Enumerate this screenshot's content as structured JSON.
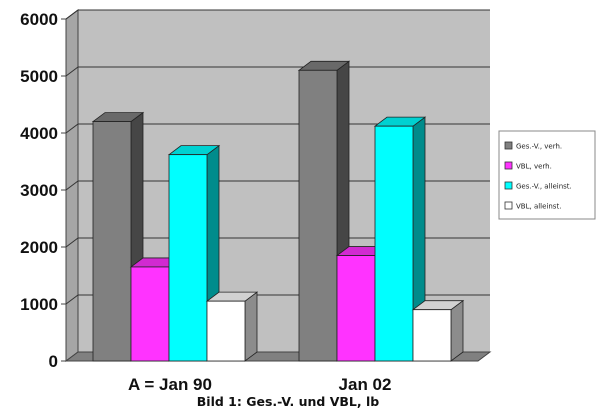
{
  "chart_data": {
    "type": "bar",
    "categories": [
      "A = Jan 90",
      "Jan 02"
    ],
    "series": [
      {
        "name": "Ges.-V., verh.",
        "values": [
          4200,
          5100
        ],
        "color": "#808080"
      },
      {
        "name": "VBL, verh.",
        "values": [
          1650,
          1850
        ],
        "color": "#ff33ff"
      },
      {
        "name": "Ges.-V., alleinst.",
        "values": [
          3620,
          4120
        ],
        "color": "#00ffff"
      },
      {
        "name": "VBL, alleinst.",
        "values": [
          1050,
          900
        ],
        "color": "#ffffff"
      }
    ],
    "title": "",
    "caption": "Bild 1: Ges.-V. und VBL, lb",
    "xlabel": "",
    "ylabel": "",
    "ylim": [
      0,
      6000
    ],
    "yticks": [
      0,
      1000,
      2000,
      3000,
      4000,
      5000,
      6000
    ],
    "grid": true,
    "legend_position": "right",
    "style": "3d",
    "colors": {
      "wall": "#c0c0c0",
      "floor": "#808080",
      "grid": "#333333"
    }
  }
}
